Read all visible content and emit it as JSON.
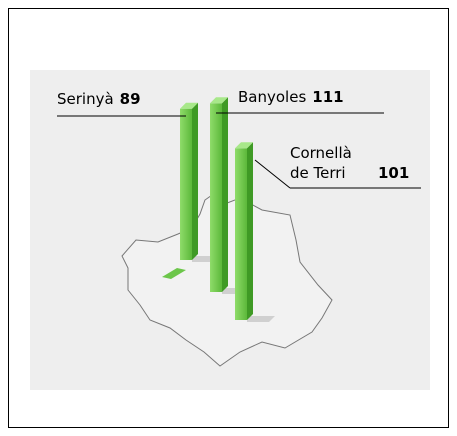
{
  "chart_data": {
    "type": "bar",
    "categories": [
      "Serinyà",
      "Banyoles",
      "Cornellà de Terri"
    ],
    "values": [
      89,
      111,
      101
    ],
    "color": "#6cc64a"
  }
}
